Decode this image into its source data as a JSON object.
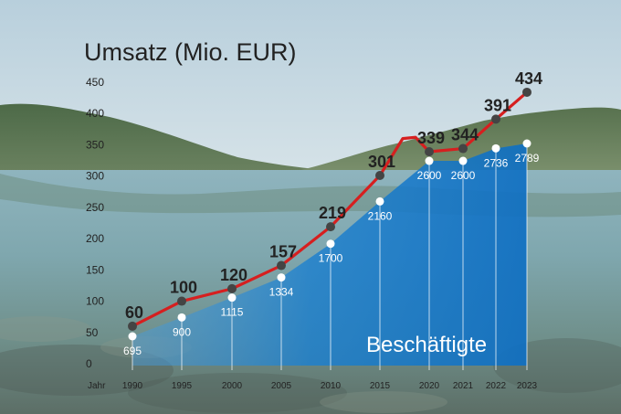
{
  "chart_data": {
    "type": "line",
    "title": "Umsatz (Mio. EUR)",
    "xlabel": "Jahr",
    "ylim": [
      0,
      450
    ],
    "yticks": [
      0,
      50,
      100,
      150,
      200,
      250,
      300,
      350,
      400,
      450
    ],
    "x": [
      "1990",
      "1995",
      "2000",
      "2005",
      "2010",
      "2015",
      "2020",
      "2021",
      "2022",
      "2023"
    ],
    "series": [
      {
        "values": [
          60,
          100,
          120,
          157,
          219,
          301,
          339,
          344,
          391,
          434
        ],
        "color": "#d61f1f",
        "marker_color": "#444444"
      },
      {
        "name": "Beschäftigte",
        "type": "area",
        "values": [
          695,
          900,
          1115,
          1334,
          1700,
          2160,
          2600,
          2600,
          2736,
          2789
        ],
        "color": "#1a7fd0"
      }
    ],
    "grid": false,
    "background": "lake and mountain landscape photo"
  }
}
